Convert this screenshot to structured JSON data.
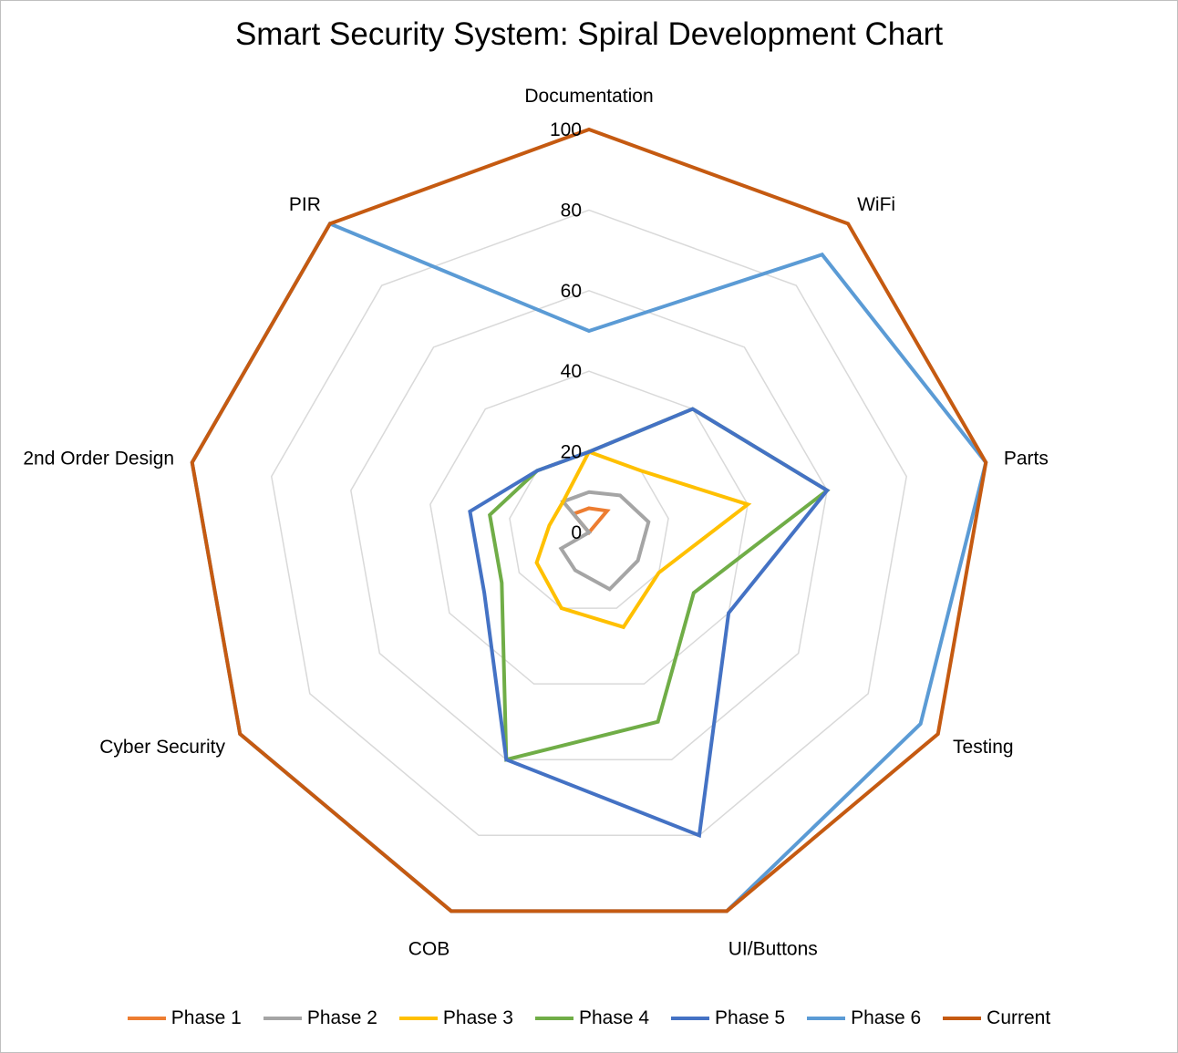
{
  "chart_data": {
    "type": "radar",
    "title": "Smart Security System: Spiral Development Chart",
    "categories": [
      "Documentation",
      "WiFi",
      "Parts",
      "Testing",
      "UI/Buttons",
      "COB",
      "Cyber Security",
      "2nd Order Design",
      "PIR"
    ],
    "rlim": [
      0,
      100
    ],
    "ticks": [
      "0",
      "20",
      "40",
      "60",
      "80",
      "100"
    ],
    "tick_values": [
      0,
      20,
      40,
      60,
      80,
      100
    ],
    "grid": true,
    "legend_position": "bottom",
    "series": [
      {
        "name": "Phase 1",
        "color": "#ED7D31",
        "values": [
          6,
          7,
          0,
          0,
          0,
          0,
          0,
          0,
          6
        ]
      },
      {
        "name": "Phase 2",
        "color": "#A5A5A5",
        "values": [
          10,
          12,
          15,
          14,
          15,
          10,
          8,
          0,
          10
        ]
      },
      {
        "name": "Phase 3",
        "color": "#FFC000",
        "values": [
          20,
          20,
          40,
          20,
          25,
          20,
          15,
          10,
          10
        ]
      },
      {
        "name": "Phase 4",
        "color": "#70AD47",
        "values": [
          20,
          40,
          60,
          30,
          50,
          60,
          25,
          25,
          20
        ]
      },
      {
        "name": "Phase 5",
        "color": "#4472C4",
        "values": [
          20,
          40,
          60,
          40,
          80,
          60,
          30,
          30,
          20
        ]
      },
      {
        "name": "Phase 6",
        "color": "#5B9BD5",
        "values": [
          50,
          90,
          100,
          95,
          100,
          100,
          100,
          100,
          100
        ]
      },
      {
        "name": "Current",
        "color": "#C55A11",
        "values": [
          100,
          100,
          100,
          100,
          100,
          100,
          100,
          100,
          100
        ]
      }
    ]
  }
}
